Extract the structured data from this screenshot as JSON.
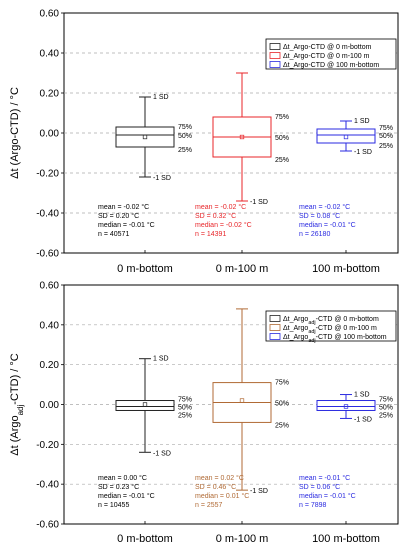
{
  "chart_data": [
    {
      "type": "box",
      "ylabel_main": "Δt (Argo-CTD) / °C",
      "ylabel_sub": "",
      "ylim": [
        -0.6,
        0.6
      ],
      "yticks": [
        "0.60",
        "0.40",
        "0.20",
        "0.00",
        "-0.20",
        "-0.40",
        "-0.60"
      ],
      "grid": "horizontal-dashed",
      "legend_position": "top-right",
      "categories": [
        "0 m-bottom",
        "0 m-100 m",
        "100 m-bottom"
      ],
      "boxes": [
        {
          "legend": "Δt_Argo-CTD @ 0 m-bottom",
          "color": "#222222",
          "mean": -0.02,
          "median": -0.01,
          "sd": 0.2,
          "q1": -0.07,
          "q3": 0.03,
          "w_low": -0.22,
          "w_high": 0.18,
          "label_upper_sd": "1 SD",
          "label_lower_sd": "-1 SD",
          "label_q3": "75%",
          "label_med": "50%",
          "label_q1": "25%",
          "stats": [
            "mean = -0.02 °C",
            "SD = 0.20 °C",
            "median = -0.01 °C",
            "n = 40571"
          ]
        },
        {
          "legend": "Δt_Argo-CTD @ 0 m-100 m",
          "color": "#e8262a",
          "mean": -0.02,
          "median": -0.02,
          "sd": 0.32,
          "q1": -0.12,
          "q3": 0.08,
          "w_low": -0.34,
          "w_high": 0.3,
          "label_upper_sd": "",
          "label_lower_sd": "-1 SD",
          "label_q3": "75%",
          "label_med": "50%",
          "label_q1": "25%",
          "stats": [
            "mean = -0.02 °C",
            "SD = 0.32 °C",
            "median = -0.02 °C",
            "n = 14391"
          ]
        },
        {
          "legend": "Δt_Argo-CTD @ 100 m-bottom",
          "color": "#2a2ae0",
          "mean": -0.02,
          "median": -0.01,
          "sd": 0.08,
          "q1": -0.05,
          "q3": 0.02,
          "w_low": -0.09,
          "w_high": 0.06,
          "label_upper_sd": "1 SD",
          "label_lower_sd": "-1 SD",
          "label_q3": "75%",
          "label_med": "50%",
          "label_q1": "25%",
          "stats": [
            "mean = -0.02 °C",
            "SD = 0.08 °C",
            "median = -0.01 °C",
            "n = 26180"
          ]
        }
      ]
    },
    {
      "type": "box",
      "ylabel_main": "Δt (Argo",
      "ylabel_sub": "adj",
      "ylabel_end": "-CTD) / °C",
      "ylim": [
        -0.6,
        0.6
      ],
      "yticks": [
        "0.60",
        "0.40",
        "0.20",
        "0.00",
        "-0.20",
        "-0.40",
        "-0.60"
      ],
      "grid": "horizontal-dashed",
      "legend_position": "top-right",
      "categories": [
        "0 m-bottom",
        "0 m-100 m",
        "100 m-bottom"
      ],
      "boxes": [
        {
          "legend": "Δt_Argo_adj-CTD @ 0 m-bottom",
          "color": "#222222",
          "mean": 0.0,
          "median": -0.01,
          "sd": 0.23,
          "q1": -0.03,
          "q3": 0.02,
          "w_low": -0.24,
          "w_high": 0.23,
          "label_upper_sd": "1 SD",
          "label_lower_sd": "-1 SD",
          "label_q3": "75%",
          "label_med": "50%",
          "label_q1": "25%",
          "stats": [
            "mean = 0.00 °C",
            "SD = 0.23 °C",
            "median = -0.01 °C",
            "n = 10455"
          ]
        },
        {
          "legend": "Δt_Argo_adj-CTD @ 0 m-100 m",
          "color": "#b06a35",
          "mean": 0.02,
          "median": 0.01,
          "sd": 0.46,
          "q1": -0.09,
          "q3": 0.11,
          "w_low": -0.43,
          "w_high": 0.48,
          "label_upper_sd": "",
          "label_lower_sd": "-1 SD",
          "label_q3": "75%",
          "label_med": "50%",
          "label_q1": "25%",
          "stats": [
            "mean = 0.02 °C",
            "SD = 0.46 °C",
            "median = 0.01 °C",
            "n = 2557"
          ]
        },
        {
          "legend": "Δt_Argo_adj-CTD @ 100 m-bottom",
          "color": "#2a2ae0",
          "mean": -0.01,
          "median": -0.01,
          "sd": 0.06,
          "q1": -0.03,
          "q3": 0.02,
          "w_low": -0.07,
          "w_high": 0.05,
          "label_upper_sd": "1 SD",
          "label_lower_sd": "-1 SD",
          "label_q3": "75%",
          "label_med": "50%",
          "label_q1": "25%",
          "stats": [
            "mean = -0.01 °C",
            "SD = 0.06 °C",
            "median = -0.01 °C",
            "n = 7898"
          ]
        }
      ]
    }
  ]
}
